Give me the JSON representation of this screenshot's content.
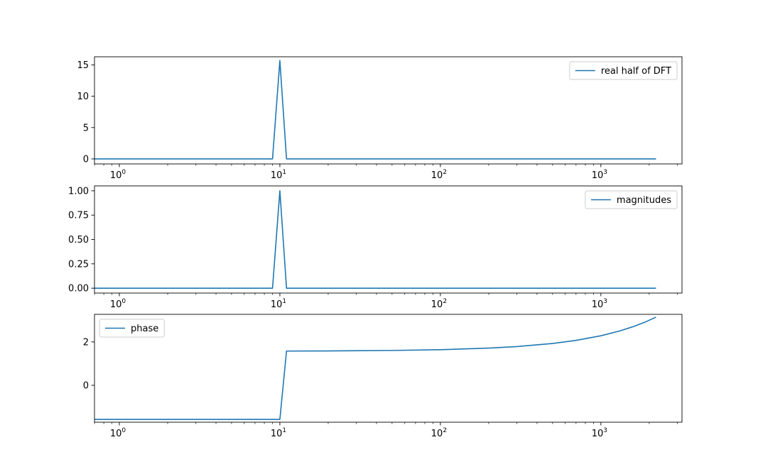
{
  "colors": {
    "series": "#1f77b4",
    "axes": "#000000",
    "background": "#ffffff",
    "legend_border": "#cccccc"
  },
  "chart_data": [
    {
      "type": "line",
      "xscale": "log",
      "xlim": [
        0.7,
        3200
      ],
      "ylim": [
        -0.8,
        16.3
      ],
      "x_ticks": [
        {
          "value": 1,
          "base": "10",
          "exp": "0"
        },
        {
          "value": 10,
          "base": "10",
          "exp": "1"
        },
        {
          "value": 100,
          "base": "10",
          "exp": "2"
        },
        {
          "value": 1000,
          "base": "10",
          "exp": "3"
        }
      ],
      "y_ticks": [
        {
          "value": 0,
          "label": "0"
        },
        {
          "value": 5,
          "label": "5"
        },
        {
          "value": 10,
          "label": "10"
        },
        {
          "value": 15,
          "label": "15"
        }
      ],
      "legend": {
        "placement": "upper-right",
        "entries": [
          "real half of DFT"
        ]
      },
      "series": [
        {
          "name": "real half of DFT",
          "x": [
            0.5,
            9,
            10,
            11,
            2205
          ],
          "y": [
            0,
            0,
            15.7,
            0,
            0
          ]
        }
      ]
    },
    {
      "type": "line",
      "xscale": "log",
      "xlim": [
        0.7,
        3200
      ],
      "ylim": [
        -0.05,
        1.05
      ],
      "x_ticks": [
        {
          "value": 1,
          "base": "10",
          "exp": "0"
        },
        {
          "value": 10,
          "base": "10",
          "exp": "1"
        },
        {
          "value": 100,
          "base": "10",
          "exp": "2"
        },
        {
          "value": 1000,
          "base": "10",
          "exp": "3"
        }
      ],
      "y_ticks": [
        {
          "value": 0,
          "label": "0.00"
        },
        {
          "value": 0.25,
          "label": "0.25"
        },
        {
          "value": 0.5,
          "label": "0.50"
        },
        {
          "value": 0.75,
          "label": "0.75"
        },
        {
          "value": 1,
          "label": "1.00"
        }
      ],
      "legend": {
        "placement": "upper-right",
        "entries": [
          "magnitudes"
        ]
      },
      "series": [
        {
          "name": "magnitudes",
          "x": [
            0.5,
            9,
            10,
            11,
            2205
          ],
          "y": [
            0,
            0,
            1,
            0,
            0
          ]
        }
      ]
    },
    {
      "type": "line",
      "xscale": "log",
      "xlim": [
        0.7,
        3200
      ],
      "ylim": [
        -1.7,
        3.27
      ],
      "x_ticks": [
        {
          "value": 1,
          "base": "10",
          "exp": "0"
        },
        {
          "value": 10,
          "base": "10",
          "exp": "1"
        },
        {
          "value": 100,
          "base": "10",
          "exp": "2"
        },
        {
          "value": 1000,
          "base": "10",
          "exp": "3"
        }
      ],
      "y_ticks": [
        {
          "value": 0,
          "label": "0"
        },
        {
          "value": 2,
          "label": "2"
        }
      ],
      "legend": {
        "placement": "upper-left",
        "entries": [
          "phase"
        ]
      },
      "series": [
        {
          "name": "phase",
          "x": [
            0.5,
            10,
            11,
            20,
            50,
            100,
            200,
            300,
            500,
            700,
            1000,
            1300,
            1600,
            1900,
            2205
          ],
          "y": [
            -1.5708,
            -1.5708,
            1.5783,
            1.585,
            1.6064,
            1.642,
            1.7132,
            1.7845,
            1.927,
            2.0695,
            2.2832,
            2.4969,
            2.7106,
            2.9243,
            3.1416
          ]
        }
      ]
    }
  ]
}
